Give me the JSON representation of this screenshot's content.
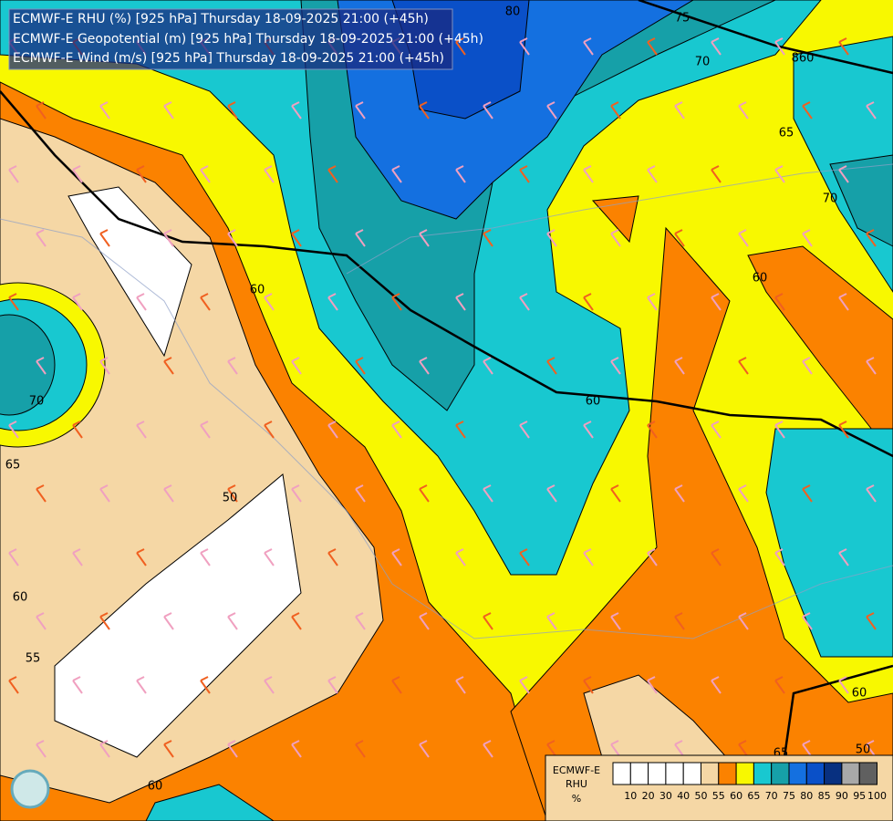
{
  "header": {
    "lines": [
      "ECMWF-E RHU (%) [925 hPa] Thursday 18-09-2025 21:00 (+45h)",
      "ECMWF-E Geopotential (m) [925 hPa] Thursday 18-09-2025 21:00 (+45h)",
      "ECMWF-E Wind (m/s) [925 hPa] Thursday 18-09-2025 21:00 (+45h)"
    ]
  },
  "contour_labels": [
    "80",
    "75",
    "70",
    "860",
    "65",
    "70",
    "60",
    "60",
    "70",
    "65",
    "50",
    "60",
    "55",
    "60",
    "65",
    "60",
    "50",
    "60"
  ],
  "legend": {
    "title": [
      "ECMWF-E",
      "RHU",
      "%"
    ],
    "ticks": [
      10,
      20,
      30,
      40,
      50,
      55,
      60,
      65,
      70,
      75,
      80,
      85,
      90,
      95,
      100
    ],
    "colors": [
      "#ffffff",
      "#ffffff",
      "#ffffff",
      "#ffffff",
      "#ffffff",
      "#f5d7a5",
      "#fb8200",
      "#f8f800",
      "#18c8d0",
      "#16a0a8",
      "#1470e0",
      "#0a50c8",
      "#083080",
      "#a8a8a8",
      "#606060"
    ]
  }
}
